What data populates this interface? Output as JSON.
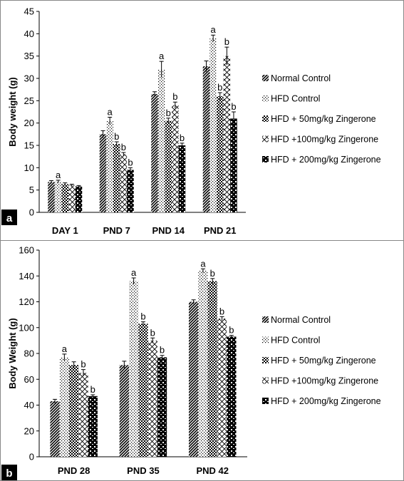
{
  "chart_data": [
    {
      "panel": "a",
      "type": "bar",
      "ylabel": "Body weight (g)",
      "ylim": [
        0,
        45
      ],
      "yticks": [
        0,
        5,
        10,
        15,
        20,
        25,
        30,
        35,
        40,
        45
      ],
      "categories": [
        "DAY 1",
        "PND 7",
        "PND 14",
        "PND 21"
      ],
      "legend_position": "right",
      "series": [
        {
          "name": "Normal Control",
          "pattern": "diag",
          "values": [
            6.8,
            17.5,
            26.5,
            32.7
          ],
          "errors": [
            0.3,
            0.8,
            0.5,
            1.2
          ],
          "sig": [
            "",
            "",
            "",
            ""
          ]
        },
        {
          "name": "HFD Control",
          "pattern": "dots",
          "values": [
            6.9,
            20.5,
            32.0,
            39.0
          ],
          "errors": [
            0.3,
            0.8,
            1.8,
            0.7
          ],
          "sig": [
            "a",
            "a",
            "a",
            "a"
          ]
        },
        {
          "name": "HFD + 50mg/kg Zingerone",
          "pattern": "check",
          "values": [
            6.3,
            15.3,
            20.5,
            26.0
          ],
          "errors": [
            0.3,
            0.5,
            0.6,
            0.8
          ],
          "sig": [
            "",
            "b",
            "b",
            "b"
          ]
        },
        {
          "name": "HFD +100mg/kg Zingerone",
          "pattern": "cross",
          "values": [
            6.1,
            13.0,
            24.0,
            35.0
          ],
          "errors": [
            0.2,
            0.4,
            0.7,
            2.0
          ],
          "sig": [
            "",
            "b",
            "b",
            "b"
          ]
        },
        {
          "name": "HFD + 200mg/kg Zingerone",
          "pattern": "blocks",
          "values": [
            5.8,
            9.5,
            15.0,
            21.0
          ],
          "errors": [
            0.2,
            0.5,
            0.5,
            1.5
          ],
          "sig": [
            "",
            "b",
            "b",
            "b"
          ]
        }
      ]
    },
    {
      "panel": "b",
      "type": "bar",
      "ylabel": "Body Weight (g)",
      "ylim": [
        0,
        160
      ],
      "yticks": [
        0,
        20,
        40,
        60,
        80,
        100,
        120,
        140,
        160
      ],
      "categories": [
        "PND 28",
        "PND 35",
        "PND 42"
      ],
      "legend_position": "right",
      "series": [
        {
          "name": "Normal Control",
          "pattern": "diag",
          "values": [
            43,
            71,
            120
          ],
          "errors": [
            1.5,
            3,
            1.5
          ],
          "sig": [
            "",
            "",
            ""
          ]
        },
        {
          "name": "HFD Control",
          "pattern": "dots",
          "values": [
            77,
            136,
            144
          ],
          "errors": [
            2.5,
            2.5,
            1.5
          ],
          "sig": [
            "a",
            "a",
            "a"
          ]
        },
        {
          "name": "HFD + 50mg/kg Zingerone",
          "pattern": "check",
          "values": [
            71,
            103,
            136
          ],
          "errors": [
            2.5,
            1.5,
            2.0
          ],
          "sig": [
            "",
            "b",
            "b"
          ]
        },
        {
          "name": "HFD +100mg/kg Zingerone",
          "pattern": "cross",
          "values": [
            65,
            90,
            107
          ],
          "errors": [
            2.5,
            2.0,
            1.5
          ],
          "sig": [
            "b",
            "b",
            "b"
          ]
        },
        {
          "name": "HFD + 200mg/kg Zingerone",
          "pattern": "blocks",
          "values": [
            47,
            77,
            93
          ],
          "errors": [
            1.0,
            1.5,
            1.0
          ],
          "sig": [
            "b",
            "b",
            "b"
          ]
        }
      ]
    }
  ]
}
